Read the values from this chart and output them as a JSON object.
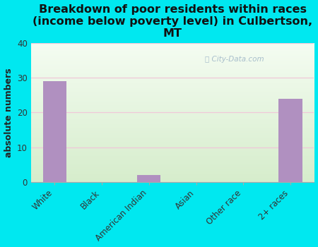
{
  "title": "Breakdown of poor residents within races\n(income below poverty level) in Culbertson,\nMT",
  "categories": [
    "White",
    "Black",
    "American Indian",
    "Asian",
    "Other race",
    "2+ races"
  ],
  "values": [
    29,
    0,
    2,
    0,
    0,
    24
  ],
  "bar_color": "#b090c0",
  "ylabel": "absolute numbers",
  "ylim": [
    0,
    40
  ],
  "yticks": [
    0,
    10,
    20,
    30,
    40
  ],
  "background_color": "#00e8f0",
  "plot_bg_color_topleft": "#e8f2e0",
  "plot_bg_color_topright": "#f5faf0",
  "plot_bg_color_bottom": "#d8ecd0",
  "title_fontsize": 11.5,
  "ylabel_fontsize": 9,
  "tick_fontsize": 8.5,
  "grid_color": "#f0c8d8",
  "watermark": "City-Data.com"
}
